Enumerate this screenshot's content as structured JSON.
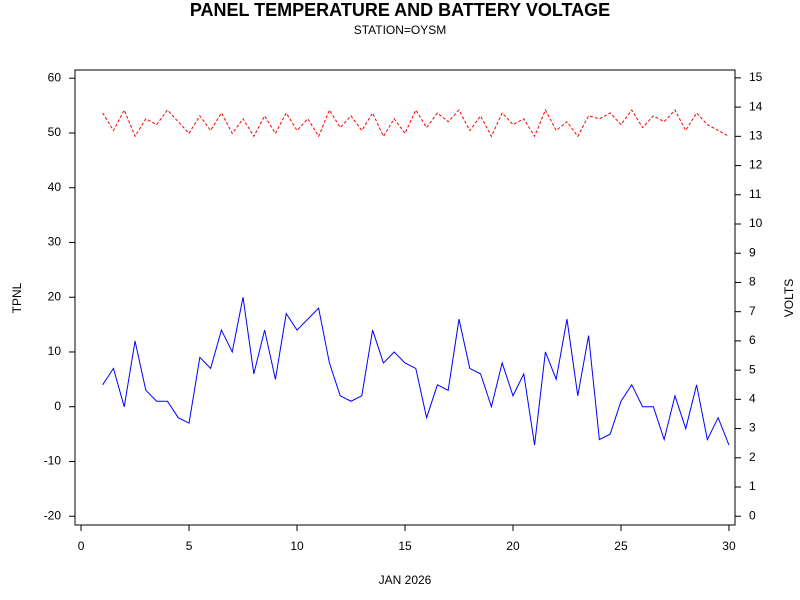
{
  "chart_data": {
    "type": "line",
    "title": "PANEL TEMPERATURE AND BATTERY VOLTAGE",
    "subtitle": "STATION=OYSM",
    "xlabel": "JAN 2026",
    "ylabel": "TPNL",
    "y2label": "VOLTS",
    "x": [
      1,
      1.5,
      2,
      2.5,
      3,
      3.5,
      4,
      4.5,
      5,
      5.5,
      6,
      6.5,
      7,
      7.5,
      8,
      8.5,
      9,
      9.5,
      10,
      10.5,
      11,
      11.5,
      12,
      12.5,
      13,
      13.5,
      14,
      14.5,
      15,
      15.5,
      16,
      16.5,
      17,
      17.5,
      18,
      18.5,
      19,
      19.5,
      20,
      20.5,
      21,
      21.5,
      22,
      22.5,
      23,
      23.5,
      24,
      24.5,
      25,
      25.5,
      26,
      26.5,
      27,
      27.5,
      28,
      28.5,
      29,
      29.5,
      30
    ],
    "series": [
      {
        "color": "#0000ff",
        "axis": "y",
        "values": [
          4,
          7,
          0,
          12,
          3,
          1,
          1,
          -2,
          -3,
          9,
          7,
          14,
          10,
          20,
          6,
          14,
          5,
          17,
          14,
          16,
          18,
          8,
          2,
          1,
          2,
          14,
          8,
          10,
          8,
          7,
          -2,
          4,
          3,
          16,
          7,
          6,
          0,
          8,
          2,
          6,
          -7,
          10,
          5,
          16,
          2,
          13,
          -6,
          -5,
          1,
          4,
          0,
          0,
          -6,
          2,
          -4,
          4,
          -6,
          -2,
          -7
        ]
      },
      {
        "color": "#ff0000",
        "axis": "y2",
        "dashed": true,
        "values": [
          13.8,
          13.2,
          13.9,
          13.0,
          13.6,
          13.4,
          13.9,
          13.5,
          13.1,
          13.7,
          13.2,
          13.8,
          13.1,
          13.6,
          13.0,
          13.7,
          13.1,
          13.8,
          13.2,
          13.6,
          13.0,
          13.9,
          13.3,
          13.7,
          13.2,
          13.8,
          13.0,
          13.6,
          13.1,
          13.9,
          13.3,
          13.8,
          13.5,
          13.9,
          13.2,
          13.7,
          13.0,
          13.8,
          13.4,
          13.6,
          13.0,
          13.9,
          13.2,
          13.5,
          13.0,
          13.7,
          13.6,
          13.8,
          13.4,
          13.9,
          13.3,
          13.7,
          13.5,
          13.9,
          13.2,
          13.8,
          13.4,
          13.2,
          13.0
        ]
      }
    ],
    "xlim": [
      -0.28,
      30.28
    ],
    "xticks": [
      0,
      5,
      10,
      15,
      20,
      25,
      30
    ],
    "ylim": [
      -21.6,
      61.5
    ],
    "yticks": [
      -20,
      -10,
      0,
      10,
      20,
      30,
      40,
      50,
      60
    ],
    "y2lim": [
      -0.3,
      15.27
    ],
    "y2ticks": [
      0,
      1,
      2,
      3,
      4,
      5,
      6,
      7,
      8,
      9,
      10,
      11,
      12,
      13,
      14,
      15
    ]
  }
}
